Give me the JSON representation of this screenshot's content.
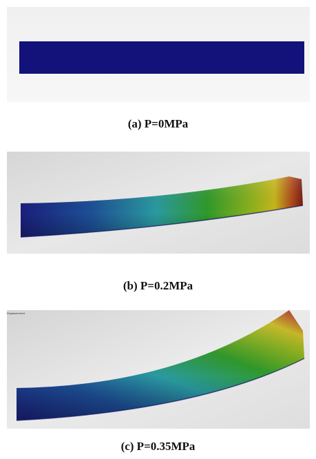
{
  "panels": [
    {
      "caption": "(a) P=0MPa"
    },
    {
      "caption": "(b) P=0.2MPa"
    },
    {
      "caption": "(c) P=0.35MPa",
      "corner_label": "Displacement1"
    }
  ],
  "colors": {
    "background_light": "#f3f3f3",
    "background_dark": "#cfcfcf",
    "blue": "#1a1f7c",
    "cyan": "#2a9aa0",
    "green": "#2f9a2a",
    "yellow": "#c8b81a",
    "red": "#8a1a12"
  },
  "icons": [
    "deformed-beam-image",
    "undeformed-beam-image"
  ]
}
